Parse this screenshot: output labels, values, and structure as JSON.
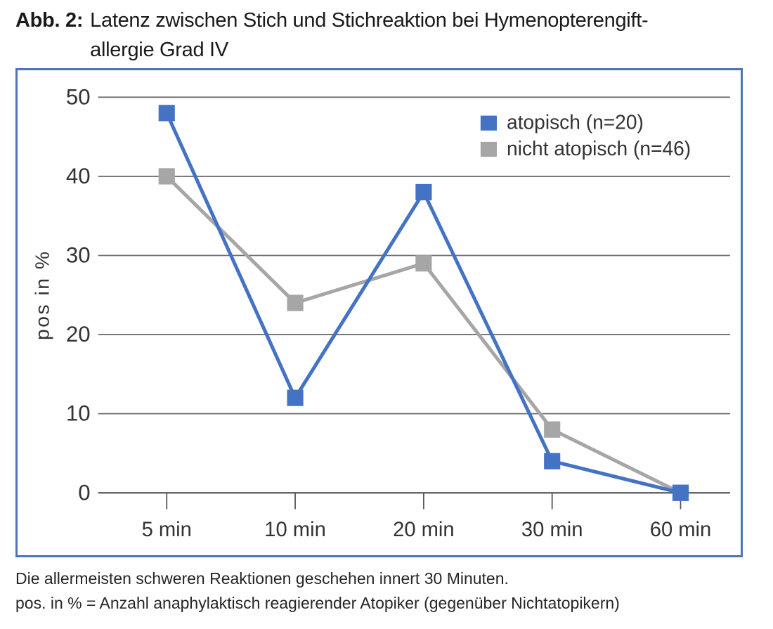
{
  "figure": {
    "label": "Abb. 2:",
    "title_line1": "Latenz zwischen Stich und Stichreaktion bei Hymenopterengift-",
    "title_line2": "allergie Grad IV"
  },
  "caption": {
    "line1": "Die allermeisten schweren Reaktionen geschehen innert 30 Minuten.",
    "line2": "pos. in % = Anzahl anaphylaktisch reagierender Atopiker (gegenüber Nichtatopikern)"
  },
  "colors": {
    "frame": "#4d74b8",
    "grid": "#6e6e6e",
    "axis": "#595959",
    "tick_text": "#333333",
    "series_atopisch": "#4472C4",
    "series_nicht_atopisch": "#A6A6A6"
  },
  "chart_data": {
    "type": "line",
    "title": "Latenz zwischen Stich und Stichreaktion bei Hymenopterengiftallergie Grad IV",
    "categories": [
      "5 min",
      "10 min",
      "20 min",
      "30 min",
      "60 min"
    ],
    "series": [
      {
        "name": "atopisch (n=20)",
        "color": "#4472C4",
        "values": [
          48,
          12,
          38,
          4,
          0
        ]
      },
      {
        "name": "nicht atopisch (n=46)",
        "color": "#A6A6A6",
        "values": [
          40,
          24,
          29,
          8,
          0
        ]
      }
    ],
    "xlabel": "",
    "ylabel": "pos in %",
    "ylim": [
      0,
      50
    ],
    "yticks": [
      0,
      10,
      20,
      30,
      40,
      50
    ],
    "grid": true,
    "legend_position": "top-right",
    "marker": "square"
  }
}
